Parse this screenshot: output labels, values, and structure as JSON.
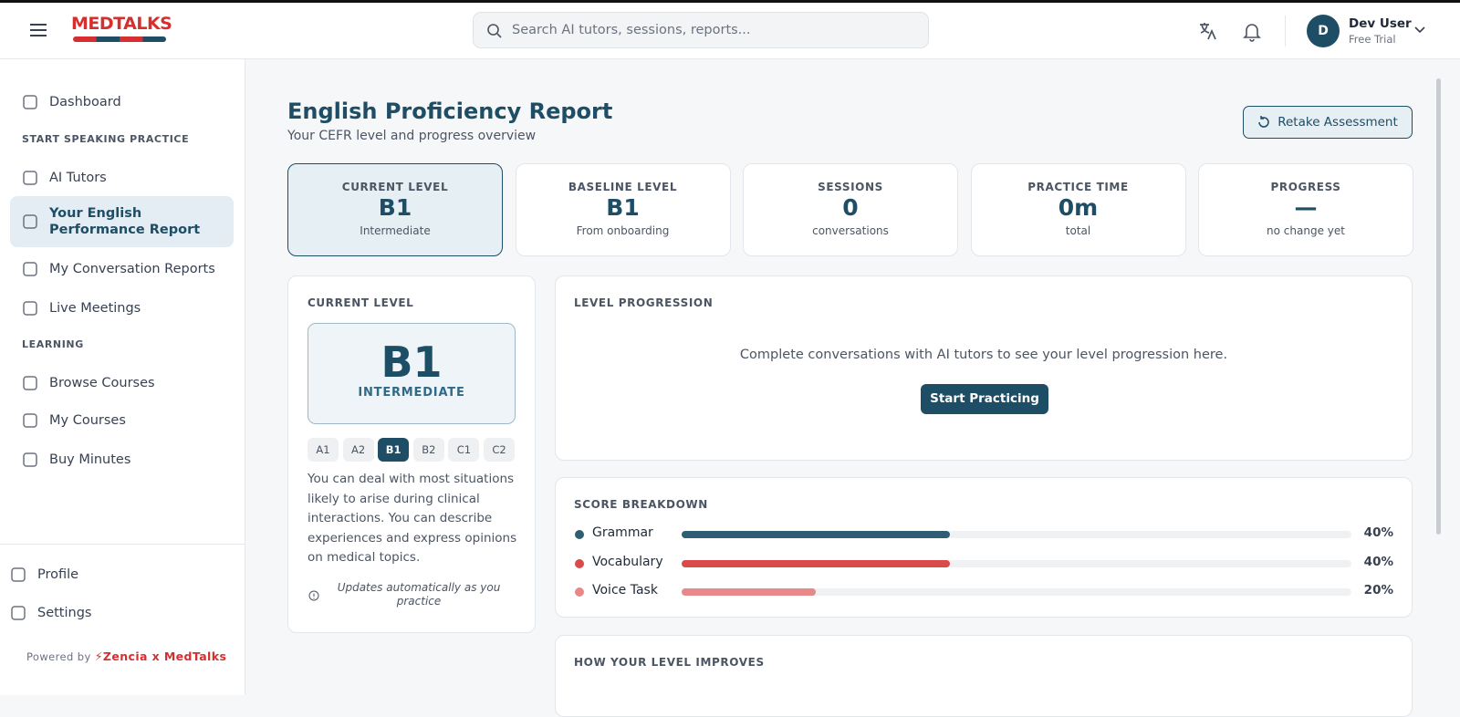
{
  "header": {
    "logo": "MEDTALKS",
    "search_placeholder": "Search AI tutors, sessions, reports...",
    "user_initial": "D",
    "user_name": "Dev User",
    "user_plan": "Free Trial"
  },
  "sidebar": {
    "items": [
      {
        "label": "Dashboard"
      },
      {
        "section": "START SPEAKING PRACTICE"
      },
      {
        "label": "AI Tutors"
      },
      {
        "label": "Your English Performance Report"
      },
      {
        "label": "My Conversation Reports"
      },
      {
        "label": "Live Meetings"
      },
      {
        "section": "LEARNING"
      },
      {
        "label": "Browse Courses"
      },
      {
        "label": "My Courses"
      },
      {
        "label": "Buy Minutes"
      }
    ],
    "active": 3,
    "bottom": [
      "Profile",
      "Settings"
    ],
    "powered_by": "Powered by",
    "brand": "Zencia x MedTalks"
  },
  "page": {
    "title": "English Proficiency Report",
    "subtitle": "Your CEFR level and progress overview",
    "button": "Retake Assessment"
  },
  "stats": [
    {
      "label": "CURRENT LEVEL",
      "value": "B1",
      "sub": "Intermediate"
    },
    {
      "label": "BASELINE LEVEL",
      "value": "B1",
      "sub": "From onboarding"
    },
    {
      "label": "SESSIONS",
      "value": 0,
      "sub": "conversations"
    },
    {
      "label": "PRACTICE TIME",
      "value": "0m",
      "sub": "total"
    },
    {
      "label": "PROGRESS",
      "value": "—",
      "sub": "no change yet"
    }
  ],
  "current_level": {
    "title": "CURRENT LEVEL",
    "level": "B1",
    "name": "INTERMEDIATE",
    "levels": [
      "A1",
      "A2",
      "B1",
      "B2",
      "C1",
      "C2"
    ],
    "active": 2,
    "description": "You can deal with most situations likely to arise during clinical interactions. You can describe experiences and express opinions on medical topics.",
    "note": "Updates automatically as you practice"
  },
  "level_progression": {
    "title": "LEVEL PROGRESSION",
    "message": "Complete conversations with AI tutors to see your level progression here.",
    "button": "Start Practicing"
  },
  "score_breakdown": {
    "title": "SCORE BREAKDOWN",
    "xlim": [
      0,
      100
    ],
    "items": [
      {
        "name": "Grammar",
        "value": 40,
        "label": "40%",
        "color": "#2f5d74"
      },
      {
        "name": "Vocabulary",
        "value": 40,
        "label": "40%",
        "color": "#d94a4a"
      },
      {
        "name": "Voice Task",
        "value": 20,
        "label": "20%",
        "color": "#e88888"
      }
    ]
  },
  "how_improves": {
    "title": "HOW YOUR LEVEL IMPROVES"
  }
}
